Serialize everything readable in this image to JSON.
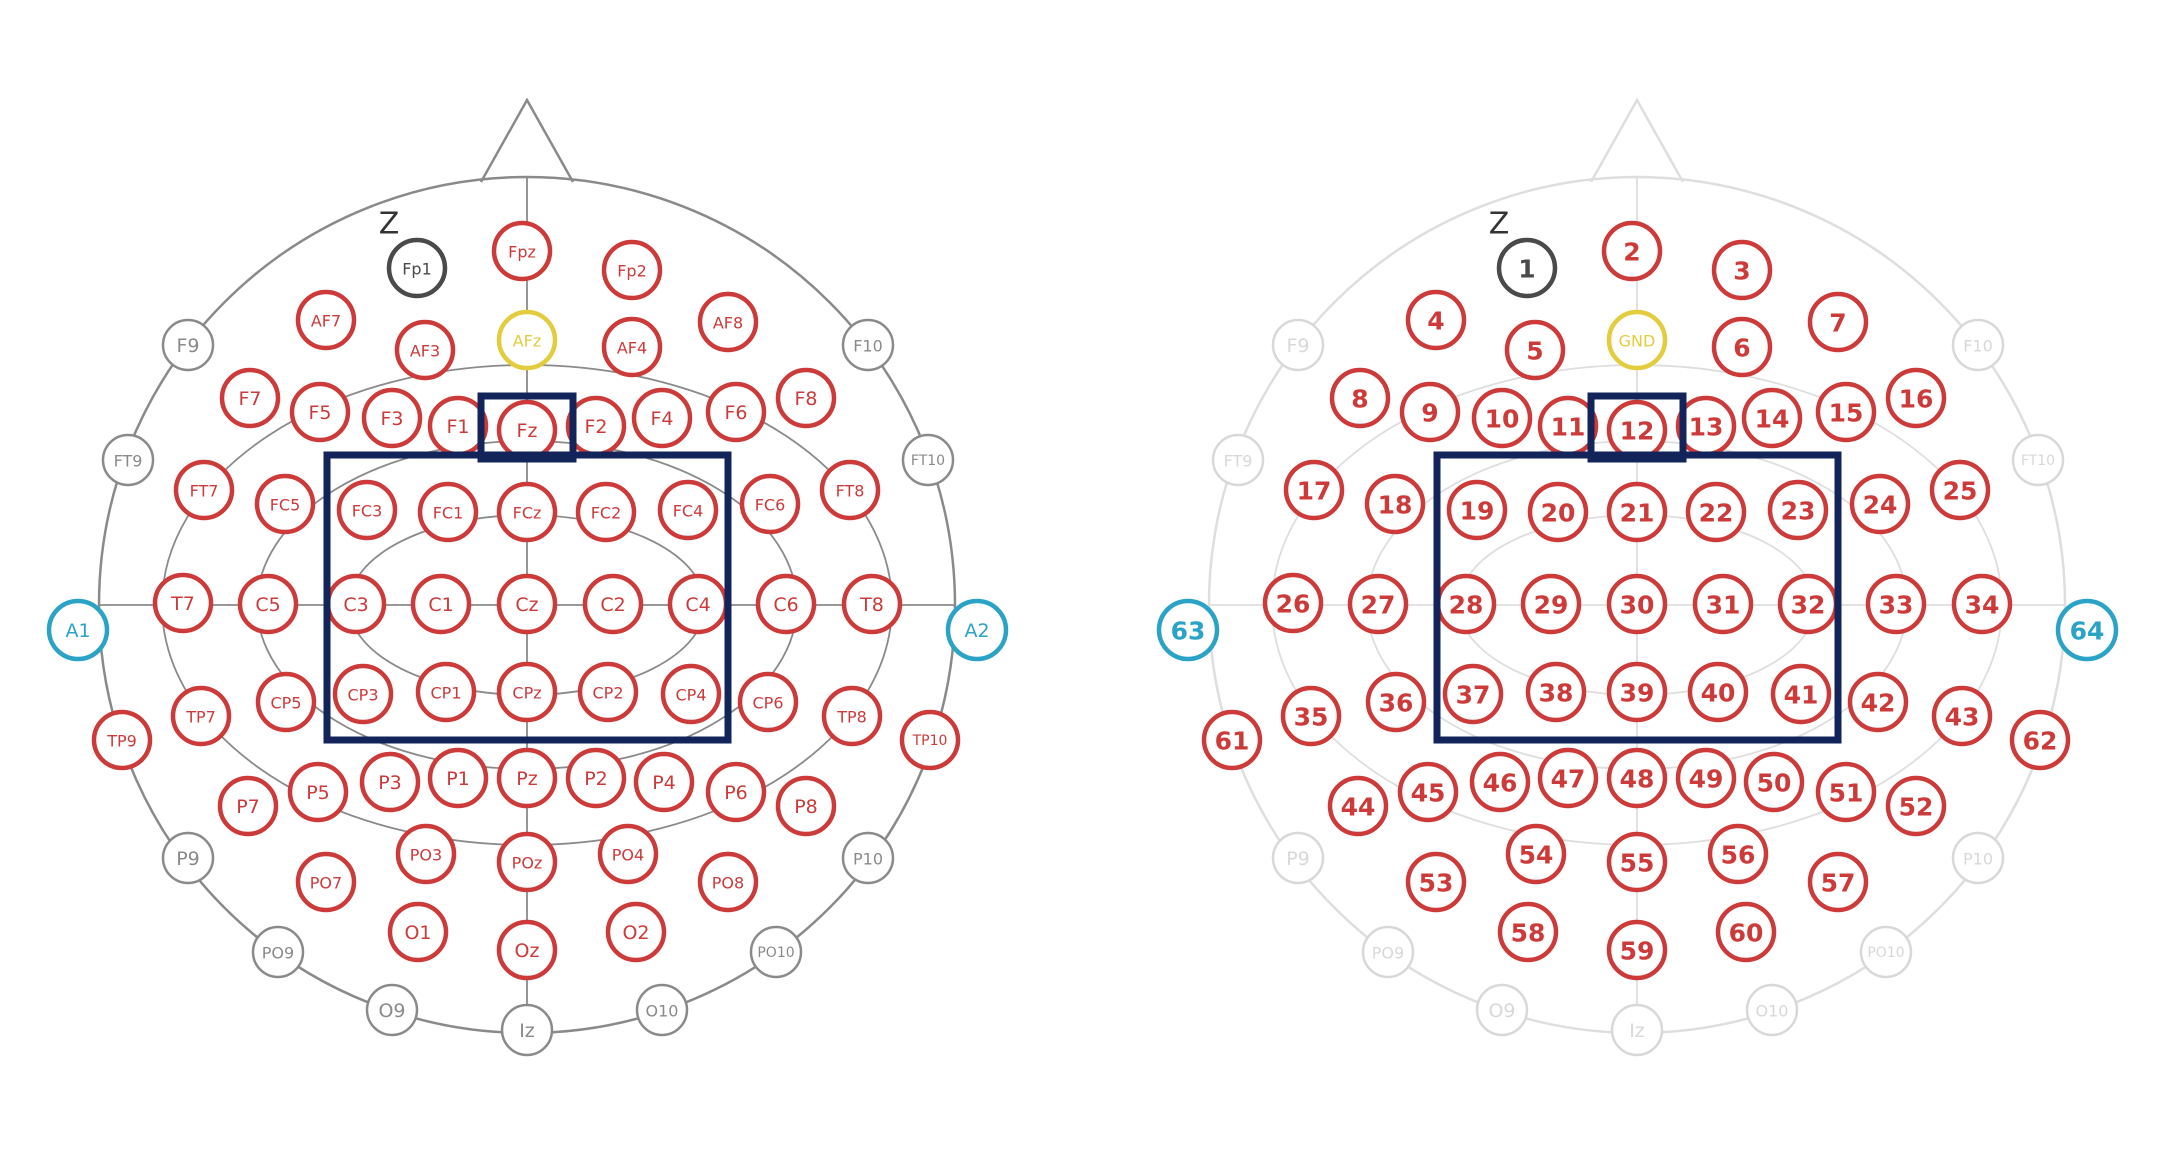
{
  "diagram": {
    "reference_mark": "Z",
    "left_map": {
      "electrodes": [
        {
          "label": "Fp1",
          "status": "reference"
        },
        {
          "label": "Fpz",
          "status": "active"
        },
        {
          "label": "Fp2",
          "status": "active"
        },
        {
          "label": "AF7",
          "status": "active"
        },
        {
          "label": "AF3",
          "status": "active"
        },
        {
          "label": "AFz",
          "status": "ground"
        },
        {
          "label": "AF4",
          "status": "active"
        },
        {
          "label": "AF8",
          "status": "active"
        },
        {
          "label": "F9",
          "status": "unused"
        },
        {
          "label": "F10",
          "status": "unused"
        },
        {
          "label": "F7",
          "status": "active"
        },
        {
          "label": "F5",
          "status": "active"
        },
        {
          "label": "F3",
          "status": "active"
        },
        {
          "label": "F1",
          "status": "active"
        },
        {
          "label": "Fz",
          "status": "active"
        },
        {
          "label": "F2",
          "status": "active"
        },
        {
          "label": "F4",
          "status": "active"
        },
        {
          "label": "F6",
          "status": "active"
        },
        {
          "label": "F8",
          "status": "active"
        },
        {
          "label": "FT9",
          "status": "unused"
        },
        {
          "label": "FT10",
          "status": "unused"
        },
        {
          "label": "FT7",
          "status": "active"
        },
        {
          "label": "FC5",
          "status": "active"
        },
        {
          "label": "FC3",
          "status": "active"
        },
        {
          "label": "FC1",
          "status": "active"
        },
        {
          "label": "FCz",
          "status": "active"
        },
        {
          "label": "FC2",
          "status": "active"
        },
        {
          "label": "FC4",
          "status": "active"
        },
        {
          "label": "FC6",
          "status": "active"
        },
        {
          "label": "FT8",
          "status": "active"
        },
        {
          "label": "A1",
          "status": "mastoid"
        },
        {
          "label": "T7",
          "status": "active"
        },
        {
          "label": "C5",
          "status": "active"
        },
        {
          "label": "C3",
          "status": "active"
        },
        {
          "label": "C1",
          "status": "active"
        },
        {
          "label": "Cz",
          "status": "active"
        },
        {
          "label": "C2",
          "status": "active"
        },
        {
          "label": "C4",
          "status": "active"
        },
        {
          "label": "C6",
          "status": "active"
        },
        {
          "label": "T8",
          "status": "active"
        },
        {
          "label": "A2",
          "status": "mastoid"
        },
        {
          "label": "TP9",
          "status": "active"
        },
        {
          "label": "TP7",
          "status": "active"
        },
        {
          "label": "CP5",
          "status": "active"
        },
        {
          "label": "CP3",
          "status": "active"
        },
        {
          "label": "CP1",
          "status": "active"
        },
        {
          "label": "CPz",
          "status": "active"
        },
        {
          "label": "CP2",
          "status": "active"
        },
        {
          "label": "CP4",
          "status": "active"
        },
        {
          "label": "CP6",
          "status": "active"
        },
        {
          "label": "TP8",
          "status": "active"
        },
        {
          "label": "TP10",
          "status": "active"
        },
        {
          "label": "P7",
          "status": "active"
        },
        {
          "label": "P5",
          "status": "active"
        },
        {
          "label": "P3",
          "status": "active"
        },
        {
          "label": "P1",
          "status": "active"
        },
        {
          "label": "Pz",
          "status": "active"
        },
        {
          "label": "P2",
          "status": "active"
        },
        {
          "label": "P4",
          "status": "active"
        },
        {
          "label": "P6",
          "status": "active"
        },
        {
          "label": "P8",
          "status": "active"
        },
        {
          "label": "P9",
          "status": "unused"
        },
        {
          "label": "P10",
          "status": "unused"
        },
        {
          "label": "PO7",
          "status": "active"
        },
        {
          "label": "PO3",
          "status": "active"
        },
        {
          "label": "POz",
          "status": "active"
        },
        {
          "label": "PO4",
          "status": "active"
        },
        {
          "label": "PO8",
          "status": "active"
        },
        {
          "label": "PO9",
          "status": "unused"
        },
        {
          "label": "PO10",
          "status": "unused"
        },
        {
          "label": "O1",
          "status": "active"
        },
        {
          "label": "Oz",
          "status": "active"
        },
        {
          "label": "O2",
          "status": "active"
        },
        {
          "label": "O9",
          "status": "unused"
        },
        {
          "label": "O10",
          "status": "unused"
        },
        {
          "label": "Iz",
          "status": "unused"
        }
      ]
    },
    "right_map": {
      "electrodes": [
        {
          "label": "1",
          "status": "reference"
        },
        {
          "label": "2",
          "status": "active"
        },
        {
          "label": "3",
          "status": "active"
        },
        {
          "label": "4",
          "status": "active"
        },
        {
          "label": "5",
          "status": "active"
        },
        {
          "label": "GND",
          "status": "ground"
        },
        {
          "label": "6",
          "status": "active"
        },
        {
          "label": "7",
          "status": "active"
        },
        {
          "label": "F9",
          "status": "unused"
        },
        {
          "label": "F10",
          "status": "unused"
        },
        {
          "label": "8",
          "status": "active"
        },
        {
          "label": "9",
          "status": "active"
        },
        {
          "label": "10",
          "status": "active"
        },
        {
          "label": "11",
          "status": "active"
        },
        {
          "label": "12",
          "status": "active"
        },
        {
          "label": "13",
          "status": "active"
        },
        {
          "label": "14",
          "status": "active"
        },
        {
          "label": "15",
          "status": "active"
        },
        {
          "label": "16",
          "status": "active"
        },
        {
          "label": "FT9",
          "status": "unused"
        },
        {
          "label": "FT10",
          "status": "unused"
        },
        {
          "label": "17",
          "status": "active"
        },
        {
          "label": "18",
          "status": "active"
        },
        {
          "label": "19",
          "status": "active"
        },
        {
          "label": "20",
          "status": "active"
        },
        {
          "label": "21",
          "status": "active"
        },
        {
          "label": "22",
          "status": "active"
        },
        {
          "label": "23",
          "status": "active"
        },
        {
          "label": "24",
          "status": "active"
        },
        {
          "label": "25",
          "status": "active"
        },
        {
          "label": "63",
          "status": "mastoid"
        },
        {
          "label": "26",
          "status": "active"
        },
        {
          "label": "27",
          "status": "active"
        },
        {
          "label": "28",
          "status": "active"
        },
        {
          "label": "29",
          "status": "active"
        },
        {
          "label": "30",
          "status": "active"
        },
        {
          "label": "31",
          "status": "active"
        },
        {
          "label": "32",
          "status": "active"
        },
        {
          "label": "33",
          "status": "active"
        },
        {
          "label": "34",
          "status": "active"
        },
        {
          "label": "64",
          "status": "mastoid"
        },
        {
          "label": "61",
          "status": "active"
        },
        {
          "label": "35",
          "status": "active"
        },
        {
          "label": "36",
          "status": "active"
        },
        {
          "label": "37",
          "status": "active"
        },
        {
          "label": "38",
          "status": "active"
        },
        {
          "label": "39",
          "status": "active"
        },
        {
          "label": "40",
          "status": "active"
        },
        {
          "label": "41",
          "status": "active"
        },
        {
          "label": "42",
          "status": "active"
        },
        {
          "label": "43",
          "status": "active"
        },
        {
          "label": "62",
          "status": "active"
        },
        {
          "label": "44",
          "status": "active"
        },
        {
          "label": "45",
          "status": "active"
        },
        {
          "label": "46",
          "status": "active"
        },
        {
          "label": "47",
          "status": "active"
        },
        {
          "label": "48",
          "status": "active"
        },
        {
          "label": "49",
          "status": "active"
        },
        {
          "label": "50",
          "status": "active"
        },
        {
          "label": "51",
          "status": "active"
        },
        {
          "label": "52",
          "status": "active"
        },
        {
          "label": "P9",
          "status": "unused"
        },
        {
          "label": "P10",
          "status": "unused"
        },
        {
          "label": "53",
          "status": "active"
        },
        {
          "label": "54",
          "status": "active"
        },
        {
          "label": "55",
          "status": "active"
        },
        {
          "label": "56",
          "status": "active"
        },
        {
          "label": "57",
          "status": "active"
        },
        {
          "label": "PO9",
          "status": "unused"
        },
        {
          "label": "PO10",
          "status": "unused"
        },
        {
          "label": "58",
          "status": "active"
        },
        {
          "label": "59",
          "status": "active"
        },
        {
          "label": "60",
          "status": "active"
        },
        {
          "label": "O9",
          "status": "unused"
        },
        {
          "label": "O10",
          "status": "unused"
        },
        {
          "label": "Iz",
          "status": "unused"
        }
      ]
    },
    "colors": {
      "active": "#cc3a3a",
      "reference": "#4a4a4a",
      "ground": "#e3cc3e",
      "mastoid": "#2aa3c6",
      "unused_left": "#8a8a8a",
      "unused_right": "#d8d8d8",
      "highlight_box": "#13245a",
      "head_outline_left": "#8a8a8a",
      "head_outline_right": "#dedede"
    }
  }
}
